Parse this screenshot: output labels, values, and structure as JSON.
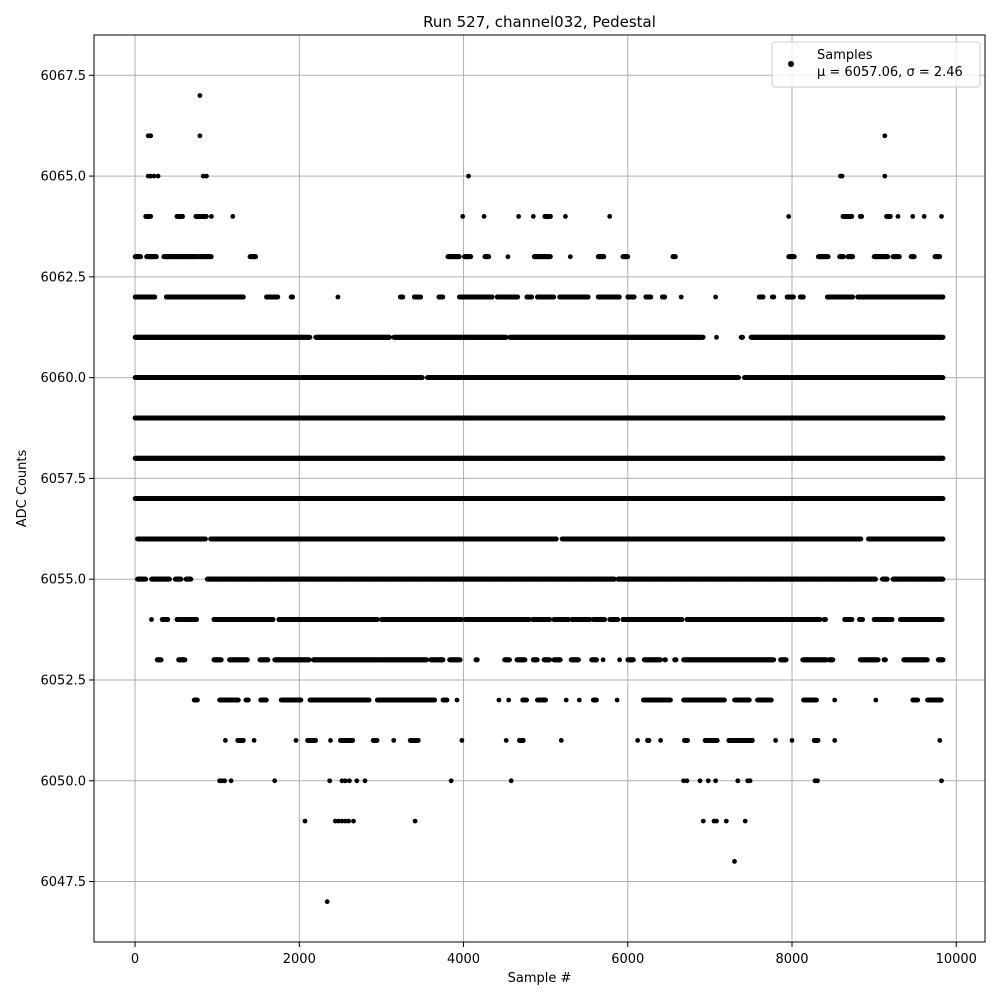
{
  "chart_data": {
    "type": "scatter",
    "title": "Run 527, channel032, Pedestal",
    "xlabel": "Sample #",
    "ylabel": "ADC Counts",
    "xlim": [
      -500,
      10350
    ],
    "ylim": [
      6046.0,
      6068.5
    ],
    "x_ticks": [
      0,
      2000,
      4000,
      6000,
      8000,
      10000
    ],
    "x_tick_labels": [
      "0",
      "2000",
      "4000",
      "6000",
      "8000",
      "10000"
    ],
    "y_ticks": [
      6047.5,
      6050.0,
      6052.5,
      6055.0,
      6057.5,
      6060.0,
      6062.5,
      6065.0,
      6067.5
    ],
    "y_tick_labels": [
      "6047.5",
      "6050.0",
      "6052.5",
      "6055.0",
      "6057.5",
      "6060.0",
      "6062.5",
      "6065.0",
      "6067.5"
    ],
    "grid": true,
    "legend_position": "top-right",
    "marker_color": "#000000",
    "series": [
      {
        "name": "Samples",
        "legend_line2": "μ = 6057.06, σ = 2.46",
        "n_samples": 9830,
        "levels": [
          {
            "y": 6047,
            "x": [
              2340
            ]
          },
          {
            "y": 6048,
            "x": [
              7300
            ]
          },
          {
            "y": 6049,
            "x": [
              2070,
              2440,
              2480,
              2520,
              2560,
              2600,
              2660,
              3410,
              6920,
              7050,
              7080,
              7200,
              7430
            ]
          },
          {
            "y": 6050,
            "x": [
              1030,
              1060,
              1090,
              1170,
              1700,
              2370,
              2520,
              2560,
              2610,
              2700,
              2800,
              3850,
              4580,
              6680,
              6720,
              6880,
              6980,
              7070,
              7340,
              7460,
              7490,
              8280,
              8310,
              9820
            ]
          },
          {
            "y": 6051,
            "x": [
              [
                1100,
                1100
              ],
              [
                1250,
                1320
              ],
              [
                1450,
                1450
              ],
              [
                1960,
                1960
              ],
              [
                2100,
                2200
              ],
              [
                2380,
                2380
              ],
              [
                2500,
                2650
              ],
              [
                2900,
                2950
              ],
              [
                3150,
                3150
              ],
              [
                3350,
                3450
              ],
              [
                3980,
                3980
              ],
              [
                4520,
                4520
              ],
              [
                4680,
                4730
              ],
              [
                5190,
                5190
              ],
              [
                6120,
                6120
              ],
              [
                6240,
                6260
              ],
              [
                6400,
                6400
              ],
              [
                6690,
                6730
              ],
              [
                6940,
                7090
              ],
              [
                7230,
                7520
              ],
              [
                7800,
                7800
              ],
              [
                8000,
                8000
              ],
              [
                8270,
                8320
              ],
              [
                8520,
                8520
              ],
              [
                9800,
                9800
              ]
            ]
          },
          {
            "y": 6052,
            "x": [
              [
                720,
                760
              ],
              [
                1030,
                1260
              ],
              [
                1350,
                1380
              ],
              [
                1530,
                1600
              ],
              [
                1780,
                2020
              ],
              [
                2130,
                2850
              ],
              [
                2950,
                3650
              ],
              [
                3750,
                3800
              ],
              [
                3920,
                3920
              ],
              [
                4430,
                4430
              ],
              [
                4550,
                4550
              ],
              [
                4720,
                4770
              ],
              [
                4900,
                5000
              ],
              [
                5250,
                5250
              ],
              [
                5410,
                5410
              ],
              [
                5580,
                5620
              ],
              [
                5870,
                5870
              ],
              [
                6190,
                6520
              ],
              [
                6680,
                7180
              ],
              [
                7300,
                7480
              ],
              [
                7580,
                7750
              ],
              [
                8140,
                8300
              ],
              [
                8520,
                8520
              ],
              [
                9020,
                9020
              ],
              [
                9470,
                9530
              ],
              [
                9650,
                9820
              ]
            ]
          },
          {
            "y": 6053,
            "x": [
              [
                270,
                320
              ],
              [
                530,
                610
              ],
              [
                960,
                1050
              ],
              [
                1150,
                1370
              ],
              [
                1520,
                1620
              ],
              [
                1700,
                2120
              ],
              [
                2170,
                3550
              ],
              [
                3600,
                3750
              ],
              [
                3830,
                3960
              ],
              [
                4150,
                4170
              ],
              [
                4500,
                4560
              ],
              [
                4650,
                4750
              ],
              [
                4850,
                4900
              ],
              [
                4980,
                5050
              ],
              [
                5100,
                5180
              ],
              [
                5310,
                5400
              ],
              [
                5560,
                5620
              ],
              [
                5700,
                5700
              ],
              [
                5900,
                5900
              ],
              [
                6000,
                6070
              ],
              [
                6200,
                6400
              ],
              [
                6450,
                6460
              ],
              [
                6570,
                6590
              ],
              [
                6680,
                7780
              ],
              [
                7860,
                7930
              ],
              [
                8130,
                8420
              ],
              [
                8450,
                8500
              ],
              [
                8830,
                9050
              ],
              [
                9120,
                9140
              ],
              [
                9360,
                9650
              ],
              [
                9780,
                9840
              ]
            ]
          },
          {
            "y": 6054,
            "x": [
              [
                200,
                200
              ],
              [
                330,
                400
              ],
              [
                510,
                750
              ],
              [
                960,
                1680
              ],
              [
                1750,
                2950
              ],
              [
                3000,
                3980
              ],
              [
                4020,
                4800
              ],
              [
                4840,
                5050
              ],
              [
                5100,
                5280
              ],
              [
                5320,
                5540
              ],
              [
                5580,
                5720
              ],
              [
                5780,
                5880
              ],
              [
                5940,
                6660
              ],
              [
                6720,
                8340
              ],
              [
                8390,
                8410
              ],
              [
                8640,
                8730
              ],
              [
                8820,
                8860
              ],
              [
                9000,
                9220
              ],
              [
                9320,
                9830
              ]
            ]
          },
          {
            "y": 6055,
            "x": [
              [
                30,
                130
              ],
              [
                200,
                420
              ],
              [
                490,
                560
              ],
              [
                620,
                680
              ],
              [
                880,
                5840
              ],
              [
                5880,
                9020
              ],
              [
                9100,
                9160
              ],
              [
                9230,
                9840
              ]
            ]
          },
          {
            "y": 6056,
            "x": [
              [
                30,
                860
              ],
              [
                920,
                5130
              ],
              [
                5200,
                8840
              ],
              [
                8930,
                9840
              ]
            ]
          },
          {
            "y": 6057,
            "x": [
              [
                0,
                9840
              ]
            ]
          },
          {
            "y": 6058,
            "x": [
              [
                0,
                9840
              ]
            ]
          },
          {
            "y": 6059,
            "x": [
              [
                0,
                9840
              ]
            ]
          },
          {
            "y": 6060,
            "x": [
              [
                0,
                3500
              ],
              [
                3560,
                7350
              ],
              [
                7420,
                9840
              ]
            ]
          },
          {
            "y": 6061,
            "x": [
              [
                0,
                2130
              ],
              [
                2200,
                3100
              ],
              [
                3150,
                4520
              ],
              [
                4560,
                6920
              ],
              [
                7080,
                7080
              ],
              [
                7380,
                7400
              ],
              [
                7500,
                9840
              ]
            ]
          },
          {
            "y": 6062,
            "x": [
              [
                0,
                240
              ],
              [
                380,
                1140
              ],
              [
                1160,
                1320
              ],
              [
                1600,
                1740
              ],
              [
                1900,
                1920
              ],
              [
                2470,
                2470
              ],
              [
                3230,
                3260
              ],
              [
                3400,
                3480
              ],
              [
                3700,
                3750
              ],
              [
                3950,
                4350
              ],
              [
                4410,
                4660
              ],
              [
                4770,
                4830
              ],
              [
                4900,
                5100
              ],
              [
                5170,
                5520
              ],
              [
                5640,
                5900
              ],
              [
                6000,
                6080
              ],
              [
                6220,
                6280
              ],
              [
                6420,
                6450
              ],
              [
                6650,
                6650
              ],
              [
                7070,
                7070
              ],
              [
                7600,
                7650
              ],
              [
                7760,
                7780
              ],
              [
                7940,
                8020
              ],
              [
                8100,
                8140
              ],
              [
                8430,
                8740
              ],
              [
                8800,
                9840
              ]
            ]
          },
          {
            "y": 6063,
            "x": [
              [
                0,
                70
              ],
              [
                140,
                260
              ],
              [
                350,
                750
              ],
              [
                770,
                930
              ],
              [
                1400,
                1470
              ],
              [
                3810,
                3950
              ],
              [
                4010,
                4090
              ],
              [
                4260,
                4310
              ],
              [
                4540,
                4540
              ],
              [
                4860,
                5060
              ],
              [
                5300,
                5300
              ],
              [
                5640,
                5710
              ],
              [
                5940,
                6000
              ],
              [
                6550,
                6580
              ],
              [
                7960,
                8030
              ],
              [
                8320,
                8440
              ],
              [
                8580,
                8630
              ],
              [
                8680,
                8740
              ],
              [
                9000,
                9170
              ],
              [
                9230,
                9310
              ],
              [
                9450,
                9490
              ],
              [
                9740,
                9800
              ]
            ]
          },
          {
            "y": 6064,
            "x": [
              [
                130,
                190
              ],
              [
                510,
                580
              ],
              [
                740,
                870
              ],
              [
                930,
                930
              ],
              [
                1190,
                1190
              ],
              [
                3990,
                3990
              ],
              [
                4250,
                4250
              ],
              [
                4670,
                4670
              ],
              [
                4850,
                4850
              ],
              [
                4990,
                5060
              ],
              [
                5240,
                5240
              ],
              [
                5780,
                5780
              ],
              [
                7960,
                7960
              ],
              [
                8620,
                8730
              ],
              [
                8830,
                8850
              ],
              [
                9150,
                9200
              ],
              [
                9290,
                9290
              ],
              [
                9470,
                9470
              ],
              [
                9610,
                9610
              ],
              [
                9820,
                9820
              ]
            ]
          },
          {
            "y": 6065,
            "x": [
              160,
              190,
              230,
              280,
              830,
              870,
              4060,
              8590,
              8610,
              9130
            ]
          },
          {
            "y": 6066,
            "x": [
              160,
              190,
              790,
              9130
            ]
          },
          {
            "y": 6067,
            "x": [
              790
            ]
          }
        ]
      }
    ]
  }
}
